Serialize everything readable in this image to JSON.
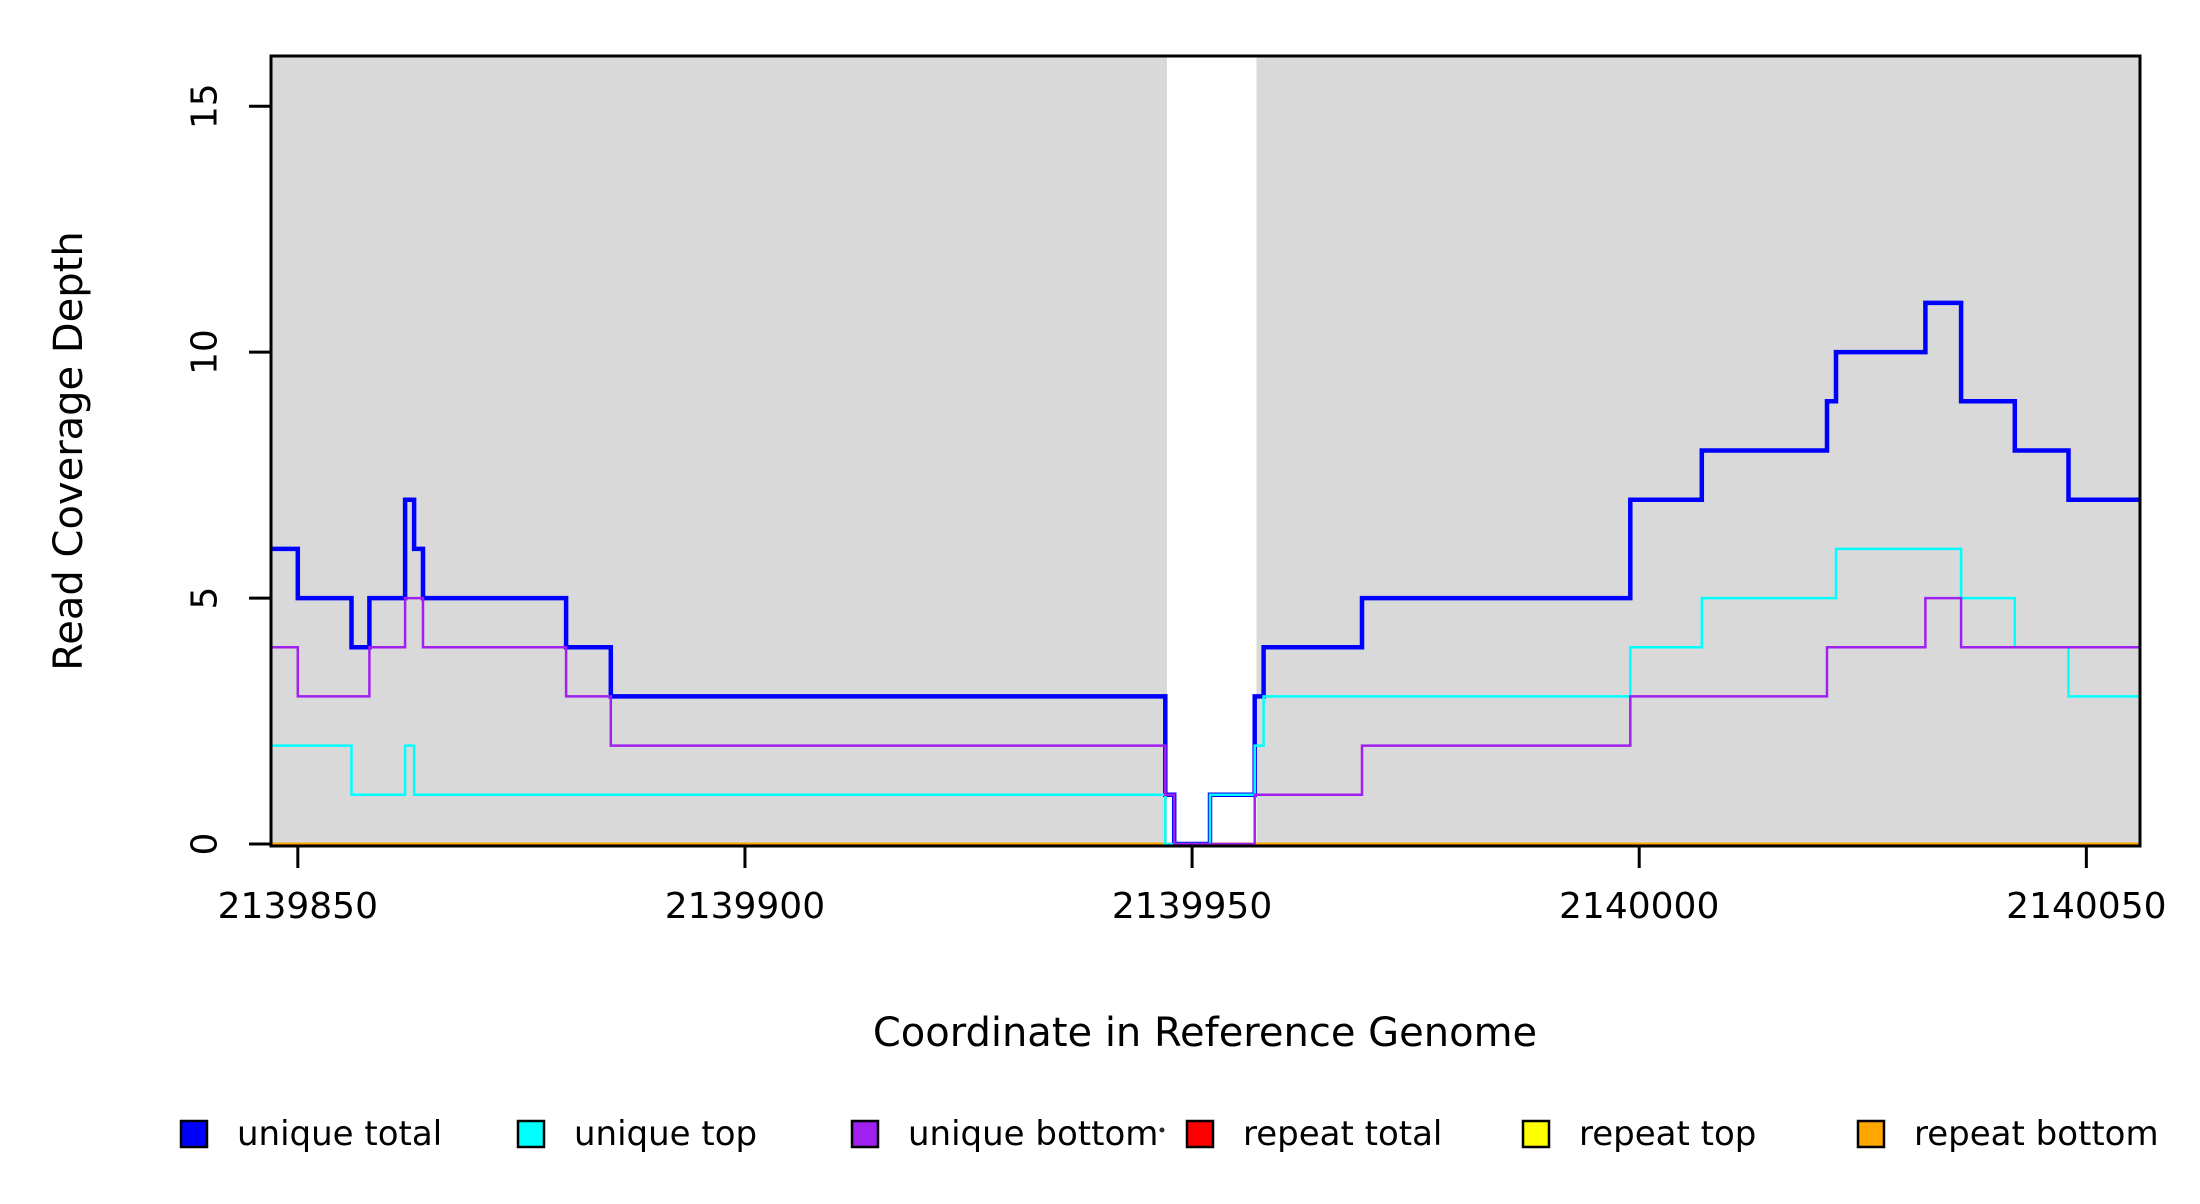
{
  "chart_data": {
    "type": "step",
    "title": "",
    "xlabel": "Coordinate in Reference Genome",
    "ylabel": "Read Coverage Depth",
    "xlim": [
      2139847,
      2140056
    ],
    "ylim": [
      0,
      16
    ],
    "x_ticks": [
      2139850,
      2139900,
      2139950,
      2140000,
      2140050
    ],
    "y_ticks": [
      0,
      5,
      10,
      15
    ],
    "grid": false,
    "legend_position": "bottom",
    "plot_border_color": "#000000",
    "background_regions": [
      {
        "name": "shaded-left",
        "from": 2139847.0,
        "to": 2139947.2,
        "color": "#D9D9D9"
      },
      {
        "name": "coverage-gap",
        "from": 2139947.2,
        "to": 2139957.2,
        "color": "#FFFFFF"
      },
      {
        "name": "shaded-right",
        "from": 2139957.2,
        "to": 2140056.0,
        "color": "#D9D9D9"
      }
    ],
    "series": [
      {
        "name": "repeat total",
        "color": "#FF0000",
        "width": 2.5,
        "steps": [
          [
            2139847,
            0
          ]
        ],
        "end": 2140056
      },
      {
        "name": "repeat top",
        "color": "#FFFF00",
        "width": 2.5,
        "steps": [
          [
            2139847,
            0
          ]
        ],
        "end": 2140056
      },
      {
        "name": "repeat bottom",
        "color": "#FFA500",
        "width": 3,
        "steps": [
          [
            2139847,
            0
          ]
        ],
        "end": 2140056
      },
      {
        "name": "unique total",
        "color": "#0000FF",
        "width": 4.5,
        "steps": [
          [
            2139847,
            6
          ],
          [
            2139850,
            5
          ],
          [
            2139856,
            4
          ],
          [
            2139858,
            5
          ],
          [
            2139862,
            7
          ],
          [
            2139863,
            6
          ],
          [
            2139864,
            5
          ],
          [
            2139880,
            4
          ],
          [
            2139885,
            3
          ],
          [
            2139947,
            1
          ],
          [
            2139948,
            0
          ],
          [
            2139952,
            1
          ],
          [
            2139957,
            3
          ],
          [
            2139958,
            4
          ],
          [
            2139969,
            5
          ],
          [
            2139999,
            7
          ],
          [
            2140007,
            8
          ],
          [
            2140021,
            9
          ],
          [
            2140022,
            10
          ],
          [
            2140032,
            11
          ],
          [
            2140036,
            9
          ],
          [
            2140042,
            8
          ],
          [
            2140048,
            7
          ]
        ],
        "end": 2140056
      },
      {
        "name": "unique top",
        "color": "#00FFFF",
        "width": 2.5,
        "steps": [
          [
            2139847,
            2
          ],
          [
            2139856,
            1
          ],
          [
            2139862,
            2
          ],
          [
            2139863,
            1
          ],
          [
            2139947,
            0
          ],
          [
            2139952,
            1
          ],
          [
            2139957,
            2
          ],
          [
            2139958,
            3
          ],
          [
            2139999,
            4
          ],
          [
            2140007,
            5
          ],
          [
            2140022,
            6
          ],
          [
            2140036,
            5
          ],
          [
            2140042,
            4
          ],
          [
            2140048,
            3
          ]
        ],
        "end": 2140056
      },
      {
        "name": "unique bottom",
        "color": "#A020F0",
        "width": 2.5,
        "steps": [
          [
            2139847,
            4
          ],
          [
            2139850,
            3
          ],
          [
            2139858,
            4
          ],
          [
            2139862,
            5
          ],
          [
            2139864,
            4
          ],
          [
            2139880,
            3
          ],
          [
            2139885,
            2
          ],
          [
            2139947,
            1
          ],
          [
            2139948,
            0
          ],
          [
            2139957,
            1
          ],
          [
            2139969,
            2
          ],
          [
            2139999,
            3
          ],
          [
            2140021,
            4
          ],
          [
            2140032,
            5
          ],
          [
            2140036,
            4
          ]
        ],
        "end": 2140056
      }
    ],
    "legend": [
      {
        "label": "unique total",
        "color": "#0000FF"
      },
      {
        "label": "unique top",
        "color": "#00FFFF"
      },
      {
        "label": "unique bottom",
        "color": "#A020F0"
      },
      {
        "label": "repeat total",
        "color": "#FF0000"
      },
      {
        "label": "repeat top",
        "color": "#FFFF00"
      },
      {
        "label": "repeat bottom",
        "color": "#FFA500"
      }
    ]
  }
}
